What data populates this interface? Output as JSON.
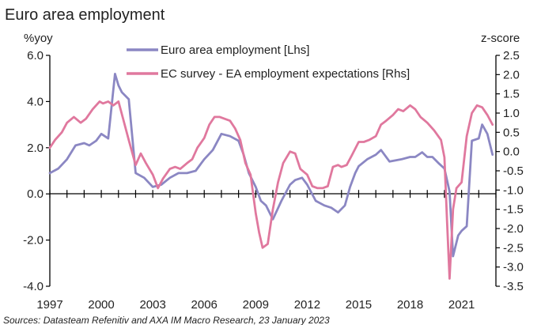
{
  "chart_data": {
    "type": "line",
    "title": "Euro area employment",
    "ylabel_left": "%yoy",
    "ylabel_right": "z-score",
    "source": "Sources: Datasteam Refenitiv and AXA IM Macro Research, 23 January 2023",
    "x_ticks": [
      "1997",
      "2000",
      "2003",
      "2006",
      "2009",
      "2012",
      "2015",
      "2018",
      "2021"
    ],
    "x_range": [
      1997,
      2023
    ],
    "y_left": {
      "range": [
        -4.0,
        6.0
      ],
      "ticks": [
        "6.0",
        "4.0",
        "2.0",
        "0.0",
        "-2.0",
        "-4.0"
      ],
      "tick_values": [
        6,
        4,
        2,
        0,
        -2,
        -4
      ]
    },
    "y_right": {
      "range": [
        -3.5,
        2.5
      ],
      "ticks": [
        "2.5",
        "2.0",
        "1.5",
        "1.0",
        "0.5",
        "0.0",
        "-0.5",
        "-1.0",
        "-1.5",
        "-2.0",
        "-2.5",
        "-3.0",
        "-3.5"
      ],
      "tick_values": [
        2.5,
        2.0,
        1.5,
        1.0,
        0.5,
        0.0,
        -0.5,
        -1.0,
        -1.5,
        -2.0,
        -2.5,
        -3.0,
        -3.5
      ]
    },
    "legend_position": "top-center",
    "series": [
      {
        "name": "Euro area employment [Lhs]",
        "axis": "left",
        "color": "#8b87c3",
        "x": [
          1997.0,
          1997.5,
          1998.0,
          1998.5,
          1999.0,
          1999.3,
          1999.7,
          2000.0,
          2000.4,
          2000.8,
          2001.0,
          2001.2,
          2001.6,
          2002.0,
          2002.5,
          2003.0,
          2003.5,
          2004.0,
          2004.5,
          2005.0,
          2005.5,
          2006.0,
          2006.5,
          2007.0,
          2007.5,
          2008.0,
          2008.3,
          2008.6,
          2009.0,
          2009.3,
          2009.6,
          2010.0,
          2010.5,
          2011.0,
          2011.3,
          2011.7,
          2012.0,
          2012.5,
          2013.0,
          2013.4,
          2013.8,
          2014.2,
          2014.5,
          2014.8,
          2015.0,
          2015.5,
          2016.0,
          2016.3,
          2016.8,
          2017.5,
          2018.0,
          2018.3,
          2018.7,
          2019.0,
          2019.3,
          2019.7,
          2020.0,
          2020.3,
          2020.5,
          2020.8,
          2021.0,
          2021.3,
          2021.6,
          2022.0,
          2022.2,
          2022.5,
          2022.8
        ],
        "values": [
          0.9,
          1.1,
          1.5,
          2.1,
          2.2,
          2.1,
          2.3,
          2.6,
          2.4,
          5.2,
          4.7,
          4.4,
          4.1,
          0.9,
          0.7,
          0.3,
          0.4,
          0.7,
          0.9,
          0.9,
          1.0,
          1.5,
          1.9,
          2.6,
          2.5,
          2.3,
          1.7,
          0.9,
          0.3,
          -0.3,
          -0.5,
          -1.1,
          -0.3,
          0.4,
          0.6,
          0.7,
          0.4,
          -0.3,
          -0.5,
          -0.6,
          -0.8,
          -0.5,
          0.3,
          0.9,
          1.2,
          1.5,
          1.7,
          1.9,
          1.4,
          1.5,
          1.6,
          1.6,
          1.8,
          1.6,
          1.6,
          1.3,
          1.1,
          0.1,
          -2.7,
          -1.8,
          -1.6,
          -1.4,
          2.3,
          2.4,
          3.0,
          2.6,
          1.7
        ]
      },
      {
        "name": "EC survey - EA employment expectations [Rhs]",
        "axis": "right",
        "color": "#e0789e",
        "x": [
          1997.0,
          1997.3,
          1997.7,
          1998.0,
          1998.4,
          1998.8,
          1999.1,
          1999.5,
          1999.9,
          2000.1,
          2000.4,
          2000.7,
          2001.0,
          2001.3,
          2001.6,
          2002.0,
          2002.3,
          2002.6,
          2003.0,
          2003.3,
          2003.6,
          2004.0,
          2004.3,
          2004.6,
          2005.0,
          2005.3,
          2005.6,
          2006.0,
          2006.3,
          2006.6,
          2006.9,
          2007.2,
          2007.5,
          2007.8,
          2008.1,
          2008.4,
          2008.7,
          2009.0,
          2009.2,
          2009.4,
          2009.7,
          2010.0,
          2010.3,
          2010.6,
          2011.0,
          2011.3,
          2011.6,
          2012.0,
          2012.3,
          2012.6,
          2012.9,
          2013.2,
          2013.5,
          2013.8,
          2014.0,
          2014.3,
          2014.6,
          2015.0,
          2015.3,
          2015.6,
          2016.0,
          2016.3,
          2016.6,
          2017.0,
          2017.3,
          2017.6,
          2018.0,
          2018.3,
          2018.6,
          2019.0,
          2019.4,
          2019.8,
          2020.0,
          2020.15,
          2020.3,
          2020.5,
          2020.7,
          2021.0,
          2021.3,
          2021.6,
          2021.9,
          2022.2,
          2022.5,
          2022.8
        ],
        "values": [
          0.1,
          0.3,
          0.5,
          0.75,
          0.9,
          0.75,
          0.85,
          1.1,
          1.3,
          1.25,
          1.3,
          1.2,
          1.3,
          0.8,
          0.3,
          -0.35,
          -0.05,
          -0.3,
          -0.6,
          -0.95,
          -0.7,
          -0.45,
          -0.4,
          -0.45,
          -0.3,
          -0.2,
          0.1,
          0.35,
          0.7,
          0.9,
          0.9,
          0.85,
          0.8,
          0.6,
          0.3,
          -0.3,
          -0.6,
          -1.6,
          -2.1,
          -2.5,
          -2.4,
          -1.5,
          -0.8,
          -0.3,
          0.0,
          -0.05,
          -0.45,
          -0.6,
          -0.9,
          -0.95,
          -0.95,
          -0.9,
          -0.4,
          -0.35,
          -0.4,
          -0.35,
          -0.1,
          0.25,
          0.25,
          0.3,
          0.4,
          0.7,
          0.8,
          0.95,
          1.1,
          1.05,
          1.2,
          1.1,
          0.9,
          0.75,
          0.55,
          0.3,
          -0.15,
          -1.8,
          -3.3,
          -1.5,
          -0.95,
          -0.8,
          0.4,
          1.0,
          1.2,
          1.15,
          0.95,
          0.7
        ]
      }
    ]
  }
}
